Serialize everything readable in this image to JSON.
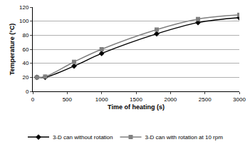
{
  "chart_data": {
    "type": "line",
    "x_label": "Time of heating (s)",
    "y_label": "Temperature (°C)",
    "series": [
      {
        "name": "3-D can without rotation",
        "color": "#000000",
        "marker": "diamond",
        "line_style": "solid",
        "x": [
          60,
          180,
          600,
          1000,
          1800,
          2400,
          3000
        ],
        "values": [
          20,
          20,
          36,
          54,
          82,
          98,
          105
        ]
      },
      {
        "name": "3-D can with rotation at 10 rpm",
        "color": "#808080",
        "marker": "square",
        "line_style": "solid",
        "x": [
          60,
          180,
          600,
          1000,
          1800,
          2400,
          3000
        ],
        "values": [
          20,
          21,
          42,
          60,
          88,
          103,
          109
        ]
      }
    ],
    "xlim": [
      0,
      3000
    ],
    "xticks": [
      0,
      500,
      1000,
      1500,
      2000,
      2500,
      3000
    ],
    "ylim": [
      0,
      120
    ],
    "yticks": [
      0,
      20,
      40,
      60,
      80,
      100,
      120
    ],
    "grid": true,
    "legend": "bottom"
  }
}
